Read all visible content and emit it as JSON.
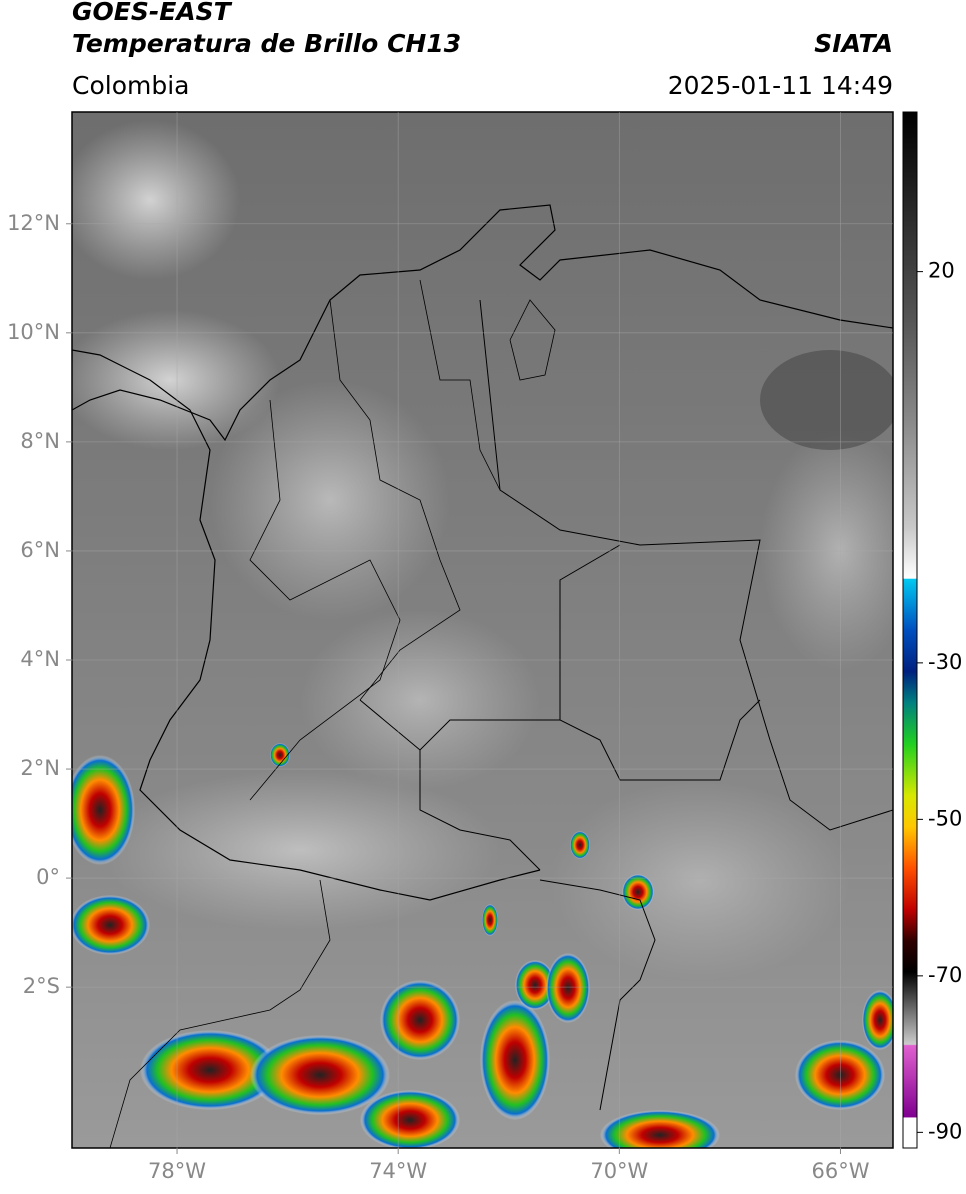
{
  "header": {
    "title": "GOES-EAST",
    "subtitle": "Temperatura de Brillo CH13",
    "source": "SIATA",
    "region": "Colombia",
    "datetime": "2025-01-11 14:49"
  },
  "map": {
    "xlim": [
      -79.9,
      -65.05
    ],
    "ylim": [
      -4.95,
      14.05
    ],
    "xticks": [
      {
        "value": -78,
        "label": "78°W"
      },
      {
        "value": -74,
        "label": "74°W"
      },
      {
        "value": -70,
        "label": "70°W"
      },
      {
        "value": -66,
        "label": "66°W"
      }
    ],
    "yticks": [
      {
        "value": 12,
        "label": "12°N"
      },
      {
        "value": 10,
        "label": "10°N"
      },
      {
        "value": 8,
        "label": "8°N"
      },
      {
        "value": 6,
        "label": "6°N"
      },
      {
        "value": 4,
        "label": "4°N"
      },
      {
        "value": 2,
        "label": "2°N"
      },
      {
        "value": 0,
        "label": "0°"
      },
      {
        "value": -2,
        "label": "2°S"
      }
    ],
    "grid": true
  },
  "colorbar": {
    "lim": [
      -92,
      40.4
    ],
    "ticks": [
      20,
      -30,
      -50,
      -70,
      -90
    ]
  }
}
